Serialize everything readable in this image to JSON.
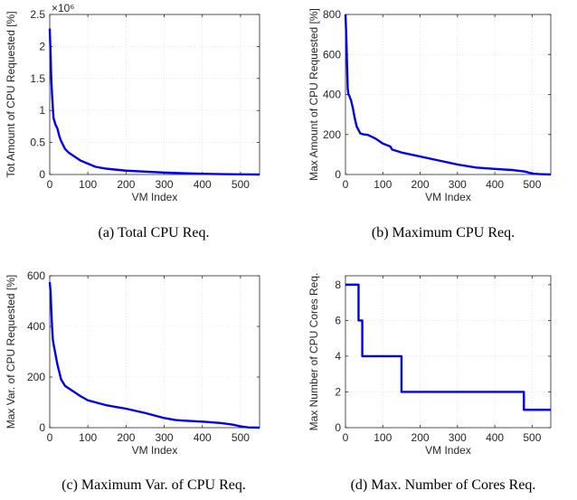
{
  "chart_data": [
    {
      "type": "line",
      "caption": "(a)  Total CPU Req.",
      "xlabel": "VM Index",
      "ylabel": "Tot Amount of CPU Requested [%]",
      "y_exponent": "×10⁶",
      "xlim": [
        0,
        550
      ],
      "ylim": [
        0,
        2.5
      ],
      "xticks": [
        0,
        100,
        200,
        300,
        400,
        500
      ],
      "yticks": [
        0,
        0.5,
        1,
        1.5,
        2,
        2.5
      ],
      "ytick_labels": [
        "0",
        "0.5",
        "1",
        "1.5",
        "2",
        "2.5"
      ],
      "grid": true,
      "color": "#0000ee",
      "series": [
        {
          "x": [
            0,
            2,
            4,
            6,
            8,
            10,
            15,
            20,
            25,
            30,
            40,
            50,
            60,
            80,
            100,
            120,
            150,
            200,
            250,
            300,
            350,
            400,
            450,
            500,
            550
          ],
          "y": [
            2.28,
            1.9,
            1.5,
            1.25,
            1.05,
            0.88,
            0.78,
            0.72,
            0.6,
            0.52,
            0.4,
            0.34,
            0.3,
            0.22,
            0.17,
            0.12,
            0.09,
            0.06,
            0.045,
            0.03,
            0.02,
            0.012,
            0.006,
            0.002,
            0.0
          ]
        }
      ]
    },
    {
      "type": "line",
      "caption": "(b)  Maximum CPU Req.",
      "xlabel": "VM Index",
      "ylabel": "Max Amount of CPU Requested [%]",
      "xlim": [
        0,
        550
      ],
      "ylim": [
        0,
        800
      ],
      "xticks": [
        0,
        100,
        200,
        300,
        400,
        500
      ],
      "yticks": [
        0,
        200,
        400,
        600,
        800
      ],
      "ytick_labels": [
        "0",
        "200",
        "400",
        "600",
        "800"
      ],
      "grid": true,
      "color": "#0000ee",
      "series": [
        {
          "x": [
            0,
            2,
            4,
            6,
            8,
            10,
            15,
            20,
            25,
            30,
            40,
            50,
            60,
            80,
            100,
            120,
            125,
            150,
            200,
            250,
            300,
            350,
            400,
            450,
            480,
            500,
            520,
            550
          ],
          "y": [
            800,
            700,
            560,
            430,
            400,
            395,
            370,
            330,
            280,
            240,
            205,
            200,
            198,
            180,
            155,
            140,
            125,
            110,
            90,
            70,
            50,
            35,
            28,
            22,
            15,
            5,
            2,
            0
          ]
        }
      ]
    },
    {
      "type": "line",
      "caption": "(c)  Maximum Var. of CPU Req.",
      "xlabel": "VM Index",
      "ylabel": "Max Var. of CPU Requested [%]",
      "xlim": [
        0,
        550
      ],
      "ylim": [
        0,
        600
      ],
      "xticks": [
        0,
        100,
        200,
        300,
        400,
        500
      ],
      "yticks": [
        0,
        200,
        400,
        600
      ],
      "ytick_labels": [
        "0",
        "200",
        "400",
        "600"
      ],
      "grid": true,
      "color": "#0000ee",
      "series": [
        {
          "x": [
            0,
            2,
            4,
            6,
            8,
            10,
            15,
            20,
            25,
            30,
            40,
            50,
            60,
            80,
            100,
            150,
            200,
            250,
            300,
            330,
            350,
            400,
            450,
            480,
            500,
            520,
            550
          ],
          "y": [
            575,
            540,
            470,
            400,
            350,
            330,
            290,
            250,
            220,
            190,
            165,
            155,
            145,
            125,
            108,
            88,
            75,
            58,
            38,
            30,
            28,
            24,
            18,
            12,
            5,
            1,
            0
          ]
        }
      ]
    },
    {
      "type": "line",
      "caption": "(d)  Max. Number of Cores Req.",
      "xlabel": "VM Index",
      "ylabel": "Max Number of CPU Cores Req.",
      "xlim": [
        0,
        550
      ],
      "ylim": [
        0,
        8.5
      ],
      "xticks": [
        0,
        100,
        200,
        300,
        400,
        500
      ],
      "yticks": [
        0,
        2,
        4,
        6,
        8
      ],
      "ytick_labels": [
        "0",
        "2",
        "4",
        "6",
        "8"
      ],
      "grid": true,
      "color": "#0000ee",
      "series": [
        {
          "x": [
            0,
            35,
            35,
            45,
            45,
            150,
            150,
            478,
            478,
            550
          ],
          "y": [
            8,
            8,
            6,
            6,
            4,
            4,
            2,
            2,
            1,
            1
          ]
        }
      ]
    }
  ]
}
